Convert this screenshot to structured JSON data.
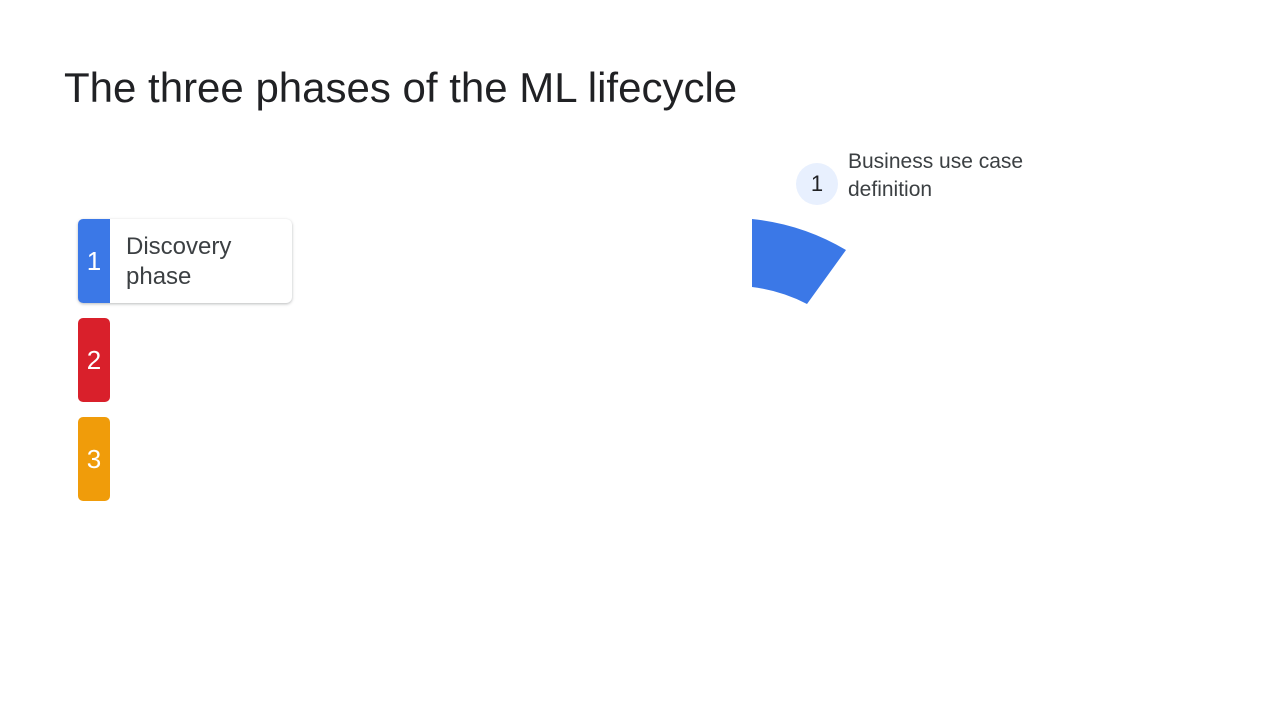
{
  "slide": {
    "title": "The three phases of the ML lifecycle"
  },
  "phases": [
    {
      "number": "1",
      "label": "Discovery phase",
      "color": "#3b78e7",
      "expanded": true
    },
    {
      "number": "2",
      "label": "",
      "color": "#d9202b",
      "expanded": false
    },
    {
      "number": "3",
      "label": "",
      "color": "#f09c0a",
      "expanded": false
    }
  ],
  "wheel": {
    "visible_segments": [
      {
        "phase": "1",
        "color": "#3b78e7"
      }
    ]
  },
  "steps": [
    {
      "number": "1",
      "label": "Business use case definition"
    }
  ]
}
